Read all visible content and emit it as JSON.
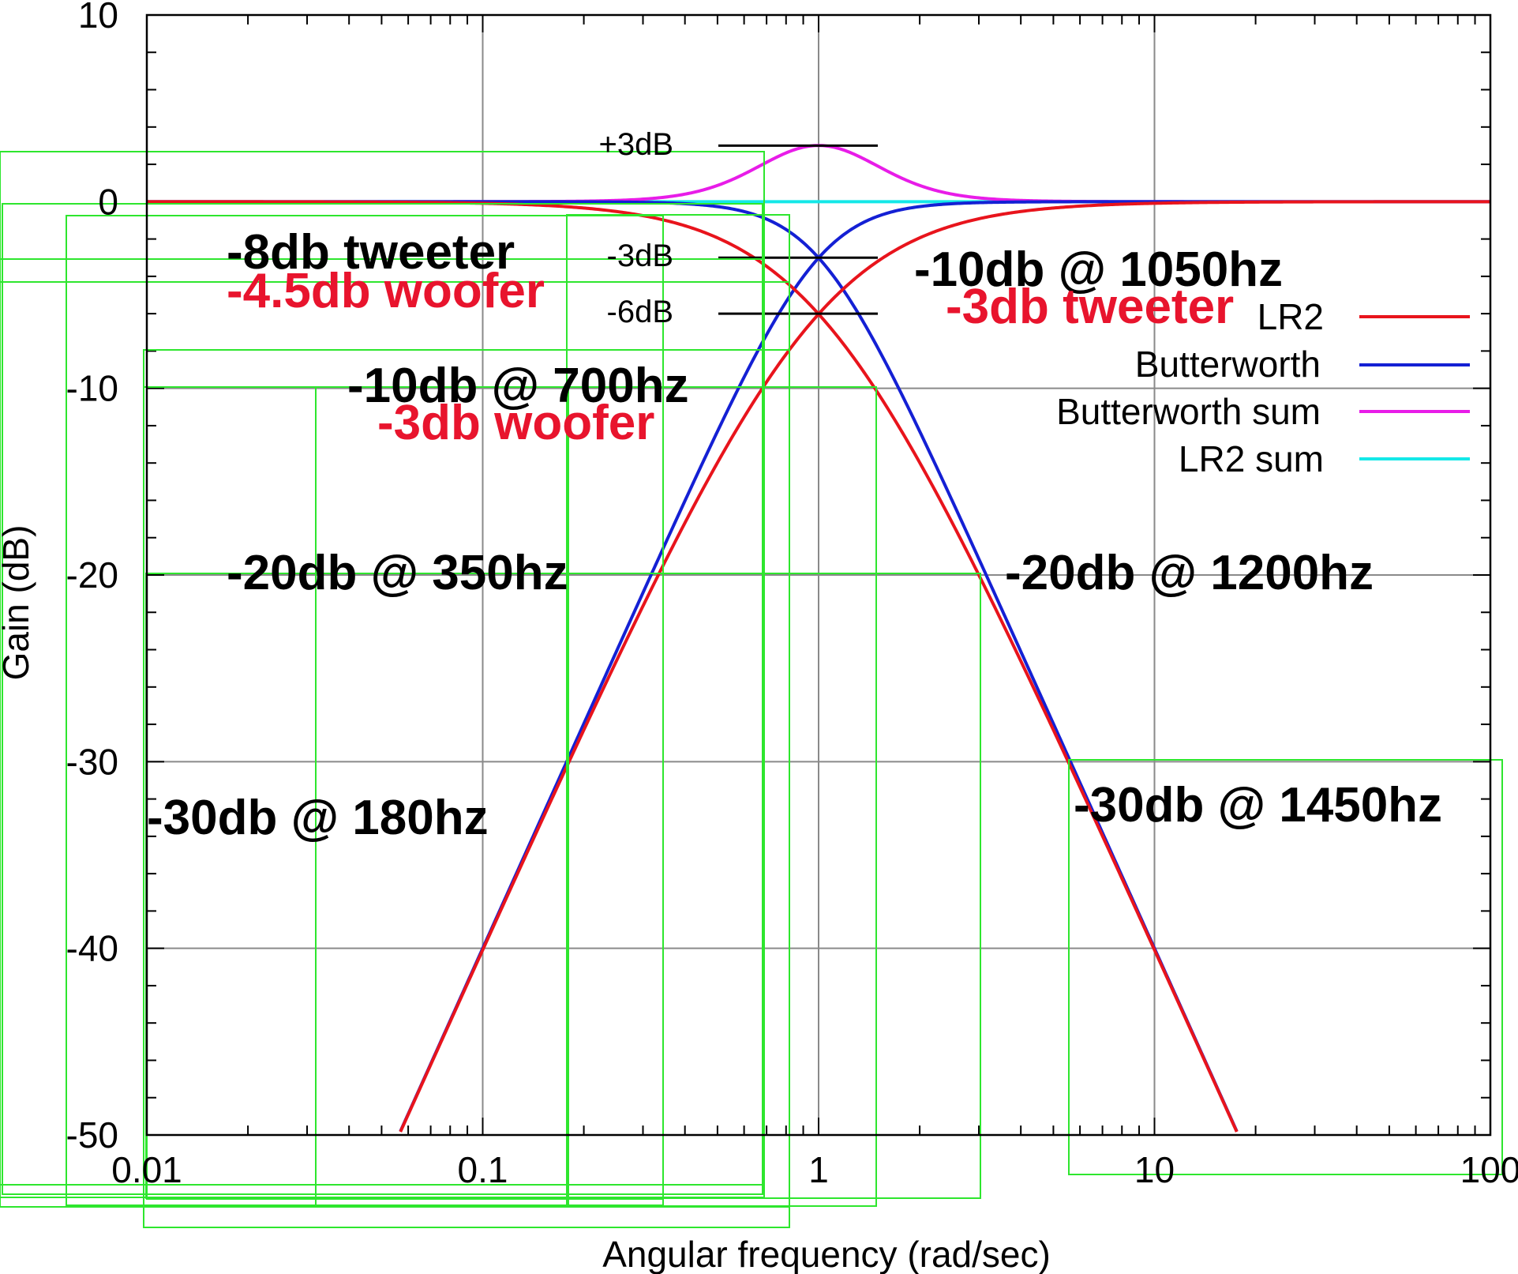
{
  "chart_data": {
    "type": "line",
    "xscale": "log",
    "xlim": [
      0.01,
      100
    ],
    "ylim": [
      -50,
      10
    ],
    "grid": true,
    "xlabel": "Angular frequency (rad/sec)",
    "ylabel": "Gain (dB)",
    "xticks": [
      {
        "value": 0.01,
        "label": "0.01"
      },
      {
        "value": 0.1,
        "label": "0.1"
      },
      {
        "value": 1,
        "label": "1"
      },
      {
        "value": 10,
        "label": "10"
      },
      {
        "value": 100,
        "label": "100"
      }
    ],
    "yticks": [
      {
        "value": 10,
        "label": "10"
      },
      {
        "value": 0,
        "label": "0"
      },
      {
        "value": -10,
        "label": "-10"
      },
      {
        "value": -20,
        "label": "-20"
      },
      {
        "value": -30,
        "label": "-30"
      },
      {
        "value": -40,
        "label": "-40"
      },
      {
        "value": -50,
        "label": "-50"
      }
    ],
    "legend_position": "right",
    "series": [
      {
        "name": "LR2",
        "color": "#e8141c",
        "formula": "LR2 low-pass and high-pass: -20*log10(1+w^2) and -20*log10(1+1/w^2)",
        "samples": [
          [
            0.01,
            0
          ],
          [
            0.1,
            -0.09
          ],
          [
            0.5,
            -1.94
          ],
          [
            1,
            -6.02
          ],
          [
            2,
            -13.98
          ],
          [
            10,
            -40.09
          ],
          [
            18,
            -50
          ]
        ]
      },
      {
        "name": "Butterworth",
        "color": "#1420d4",
        "formula": "Butterworth 2nd order low-pass and high-pass: -10*log10(1+w^4) and -10*log10(1+1/w^4)",
        "samples": [
          [
            0.01,
            0
          ],
          [
            0.1,
            0
          ],
          [
            0.5,
            -0.26
          ],
          [
            1,
            -3.01
          ],
          [
            2,
            -12.3
          ],
          [
            10,
            -40
          ],
          [
            18,
            -50
          ]
        ]
      },
      {
        "name": "Butterworth sum",
        "color": "#e81ce8",
        "formula": "10*log10(1+4*w^4/(1+w^4)^2)",
        "samples": [
          [
            0.01,
            0
          ],
          [
            0.1,
            0
          ],
          [
            0.5,
            0.91
          ],
          [
            1,
            3.01
          ],
          [
            2,
            0.91
          ],
          [
            10,
            0
          ],
          [
            100,
            0
          ]
        ]
      },
      {
        "name": "LR2 sum",
        "color": "#14e8e8",
        "formula": "0 dB flat",
        "samples": [
          [
            0.01,
            0
          ],
          [
            100,
            0
          ]
        ]
      }
    ],
    "reference_lines": [
      {
        "label": "+3dB",
        "y": 3
      },
      {
        "label": "-3dB",
        "y": -3
      },
      {
        "label": "-6dB",
        "y": -6
      }
    ],
    "annotations": [
      {
        "text": "-8db tweeter",
        "color": "#000000"
      },
      {
        "text": "-4.5db woofer",
        "color": "#e8142d"
      },
      {
        "text": "-10db @ 700hz",
        "color": "#000000"
      },
      {
        "text": "-3db woofer",
        "color": "#e8142d"
      },
      {
        "text": "-20db @ 350hz",
        "color": "#000000"
      },
      {
        "text": "-30db @ 180hz",
        "color": "#000000"
      },
      {
        "text": "-10db @ 1050hz",
        "color": "#000000"
      },
      {
        "text": "-3db tweeter",
        "color": "#e8142d"
      },
      {
        "text": "-20db @ 1200hz",
        "color": "#000000"
      },
      {
        "text": "-30db @ 1450hz",
        "color": "#000000"
      }
    ],
    "overlay_color": "#2ee62e"
  }
}
